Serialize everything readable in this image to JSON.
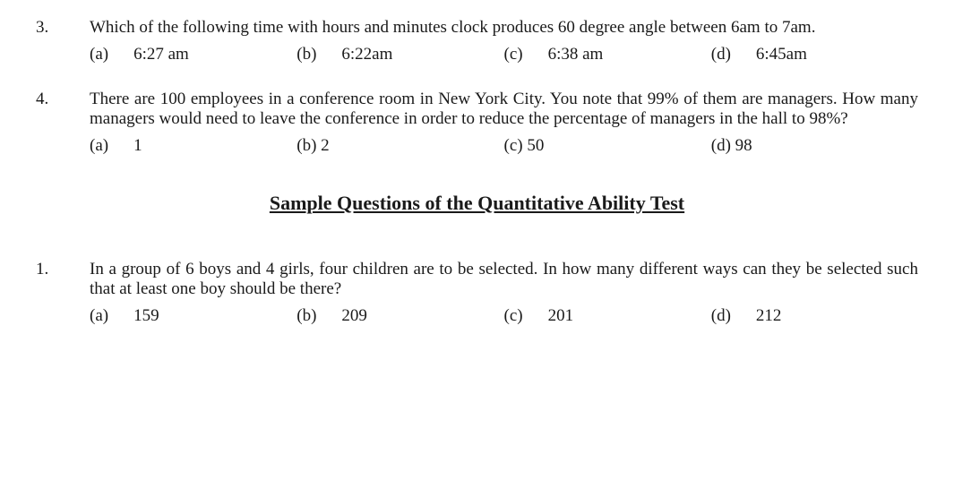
{
  "questions_top": [
    {
      "num": "3.",
      "text": "Which of the following time with hours and minutes clock produces 60 degree angle between 6am to 7am.",
      "options": [
        {
          "label": "(a)",
          "text": "6:27 am"
        },
        {
          "label": "(b)",
          "text": "6:22am"
        },
        {
          "label": "(c)",
          "text": "6:38 am"
        },
        {
          "label": "(d)",
          "text": "6:45am"
        }
      ]
    },
    {
      "num": "4.",
      "text": "There are 100 employees in a conference room in New York City. You note that 99% of them are managers. How many managers would need to leave the conference in order to reduce the percentage of managers in the hall to 98%?",
      "options": [
        {
          "label": "(a)",
          "text": "1"
        },
        {
          "label": "(b) 2",
          "text": ""
        },
        {
          "label": "(c) 50",
          "text": ""
        },
        {
          "label": "(d) 98",
          "text": ""
        }
      ]
    }
  ],
  "section_title": "Sample Questions of the Quantitative Ability Test",
  "questions_bottom": [
    {
      "num": "1.",
      "text": "In a group of 6 boys and 4 girls, four children are to be selected. In how many different ways can they be selected such that at least one boy should be there?",
      "options": [
        {
          "label": "(a)",
          "text": "159"
        },
        {
          "label": "(b)",
          "text": "209"
        },
        {
          "label": "(c)",
          "text": "201"
        },
        {
          "label": "(d)",
          "text": "212"
        }
      ]
    }
  ]
}
